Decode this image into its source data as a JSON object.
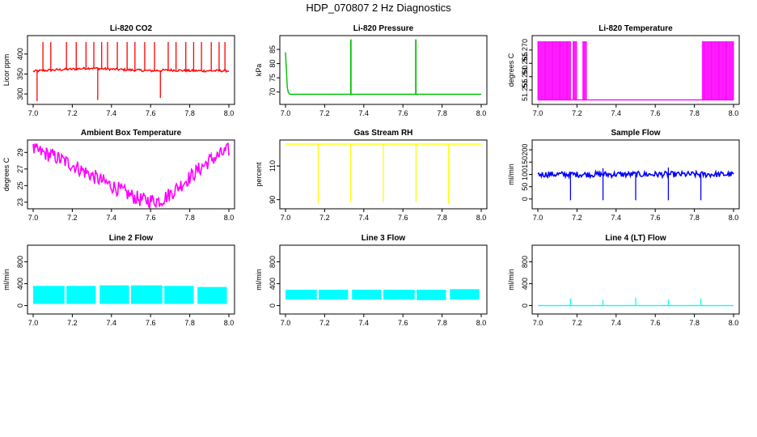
{
  "page": {
    "title": "HDP_070807  2 Hz Diagnostics"
  },
  "colors": {
    "axis": "#000000",
    "background": "#ffffff"
  },
  "chart_data": [
    {
      "id": "co2",
      "type": "line",
      "title": "Li-820 CO2",
      "ylabel": "Licor ppm",
      "color": "#ff0000",
      "xlim": [
        7.0,
        8.0
      ],
      "xticks": [
        "7.0",
        "7.2",
        "7.4",
        "7.6",
        "7.8",
        "8.0"
      ],
      "ylim": [
        280,
        440
      ],
      "yticks": [
        300,
        350,
        400
      ],
      "ytick_labels": [
        "300",
        "350",
        "400"
      ],
      "series": [
        {
          "name": "baseline",
          "x": [
            7.0,
            7.1,
            7.2,
            7.3,
            7.35,
            7.4,
            7.5,
            7.6,
            7.7,
            7.8,
            7.9,
            8.0
          ],
          "y": [
            357,
            360,
            362,
            365,
            363,
            362,
            360,
            358,
            360,
            358,
            358,
            358
          ]
        }
      ],
      "spikes": [
        {
          "x": 7.02,
          "y": 282
        },
        {
          "x": 7.05,
          "y": 430
        },
        {
          "x": 7.09,
          "y": 430
        },
        {
          "x": 7.17,
          "y": 430
        },
        {
          "x": 7.22,
          "y": 430
        },
        {
          "x": 7.27,
          "y": 430
        },
        {
          "x": 7.31,
          "y": 430
        },
        {
          "x": 7.33,
          "y": 285
        },
        {
          "x": 7.35,
          "y": 430
        },
        {
          "x": 7.38,
          "y": 430
        },
        {
          "x": 7.43,
          "y": 430
        },
        {
          "x": 7.48,
          "y": 430
        },
        {
          "x": 7.52,
          "y": 430
        },
        {
          "x": 7.57,
          "y": 430
        },
        {
          "x": 7.62,
          "y": 430
        },
        {
          "x": 7.65,
          "y": 290
        },
        {
          "x": 7.69,
          "y": 430
        },
        {
          "x": 7.73,
          "y": 430
        },
        {
          "x": 7.78,
          "y": 430
        },
        {
          "x": 7.82,
          "y": 430
        },
        {
          "x": 7.86,
          "y": 430
        },
        {
          "x": 7.91,
          "y": 430
        },
        {
          "x": 7.95,
          "y": 430
        },
        {
          "x": 7.98,
          "y": 430
        }
      ]
    },
    {
      "id": "pressure",
      "type": "line",
      "title": "Li-820 Pressure",
      "ylabel": "kPa",
      "color": "#00c000",
      "xlim": [
        7.0,
        8.0
      ],
      "xticks": [
        "7.0",
        "7.2",
        "7.4",
        "7.6",
        "7.8",
        "8.0"
      ],
      "ylim": [
        66.5,
        89
      ],
      "yticks": [
        70,
        75,
        80,
        85
      ],
      "ytick_labels": [
        "70",
        "75",
        "80",
        "85"
      ],
      "series": [
        {
          "name": "pressure",
          "x": [
            7.0,
            7.01,
            7.02,
            8.0
          ],
          "y": [
            84,
            70.5,
            69.2,
            69.2
          ]
        }
      ],
      "spikes": [
        {
          "x": 7.333,
          "y": 88.5
        },
        {
          "x": 7.335,
          "y": 88.5
        },
        {
          "x": 7.665,
          "y": 88.5
        },
        {
          "x": 7.667,
          "y": 88.5
        }
      ]
    },
    {
      "id": "licor_temp",
      "type": "line",
      "title": "Li-820 Temperature",
      "ylabel": "degrees C",
      "color": "#ff00ff",
      "xlim": [
        7.0,
        8.0
      ],
      "xticks": [
        "7.0",
        "7.2",
        "7.4",
        "7.6",
        "7.8",
        "8.0"
      ],
      "ylim": [
        51.2505,
        51.2745
      ],
      "yticks": [
        51.255,
        51.26,
        51.265,
        51.27
      ],
      "ytick_labels": [
        "51.255",
        "51.260",
        "51.265",
        "51.270"
      ],
      "series": [
        {
          "name": "low_state",
          "x": [
            7.0,
            8.0
          ],
          "y": [
            51.2513,
            51.2513
          ]
        }
      ],
      "toggle_ranges": [
        {
          "x_start": 7.0,
          "x_end": 7.17,
          "y_low": 51.2513,
          "y_high": 51.2733
        },
        {
          "x_start": 7.18,
          "x_end": 7.2,
          "y_low": 51.2513,
          "y_high": 51.2733
        },
        {
          "x_start": 7.23,
          "x_end": 7.25,
          "y_low": 51.2513,
          "y_high": 51.2733
        },
        {
          "x_start": 7.84,
          "x_end": 8.0,
          "y_low": 51.2513,
          "y_high": 51.2733
        }
      ]
    },
    {
      "id": "box_temp",
      "type": "line",
      "title": "Ambient Box Temperature",
      "ylabel": "degrees C",
      "color": "#ff00ff",
      "xlim": [
        7.0,
        8.0
      ],
      "xticks": [
        "7.0",
        "7.2",
        "7.4",
        "7.6",
        "7.8",
        "8.0"
      ],
      "ylim": [
        22.5,
        30.2
      ],
      "yticks": [
        23,
        25,
        27,
        29
      ],
      "ytick_labels": [
        "23",
        "25",
        "27",
        "29"
      ],
      "band_width": 0.9,
      "series": [
        {
          "name": "temperature",
          "x": [
            7.0,
            7.1,
            7.2,
            7.3,
            7.4,
            7.5,
            7.55,
            7.6,
            7.65,
            7.7,
            7.8,
            7.9,
            8.0
          ],
          "y": [
            29.3,
            28.6,
            27.5,
            26.2,
            25.0,
            23.8,
            23.3,
            23.2,
            23.2,
            24.0,
            26.0,
            28.0,
            29.3
          ]
        }
      ]
    },
    {
      "id": "rh",
      "type": "line",
      "title": "Gas Stream RH",
      "ylabel": "percent",
      "color": "#ffff00",
      "xlim": [
        7.0,
        8.0
      ],
      "xticks": [
        "7.0",
        "7.2",
        "7.4",
        "7.6",
        "7.8",
        "8.0"
      ],
      "ylim": [
        86,
        124
      ],
      "yticks": [
        90,
        110
      ],
      "ytick_labels": [
        "90",
        "110"
      ],
      "series": [
        {
          "name": "rh",
          "x": [
            7.0,
            8.0
          ],
          "y": [
            123,
            123
          ]
        }
      ],
      "dips": [
        {
          "x": 7.167,
          "y": 87.5
        },
        {
          "x": 7.333,
          "y": 88.5
        },
        {
          "x": 7.5,
          "y": 88.5
        },
        {
          "x": 7.667,
          "y": 88.5
        },
        {
          "x": 7.833,
          "y": 87.5
        }
      ]
    },
    {
      "id": "sample_flow",
      "type": "line",
      "title": "Sample Flow",
      "ylabel": "ml/min",
      "color": "#0000ff",
      "xlim": [
        7.0,
        8.0
      ],
      "xticks": [
        "7.0",
        "7.2",
        "7.4",
        "7.6",
        "7.8",
        "8.0"
      ],
      "ylim": [
        -30,
        230
      ],
      "yticks": [
        0,
        50,
        100,
        150,
        200
      ],
      "ytick_labels": [
        "0",
        "50",
        "100",
        "150",
        "200"
      ],
      "series": [
        {
          "name": "flow",
          "x": [
            7.0,
            8.0
          ],
          "y": [
            100,
            100
          ]
        }
      ],
      "band_width": 12,
      "dips": [
        {
          "x": 7.167,
          "y": -5
        },
        {
          "x": 7.333,
          "y": -5
        },
        {
          "x": 7.5,
          "y": -5
        },
        {
          "x": 7.667,
          "y": -5
        },
        {
          "x": 7.833,
          "y": -5
        }
      ],
      "spikes": [
        {
          "x": 7.333,
          "y": 125
        },
        {
          "x": 7.667,
          "y": 128
        }
      ]
    },
    {
      "id": "line2",
      "type": "area",
      "title": "Line 2 Flow",
      "ylabel": "ml/min",
      "color": "#00ffff",
      "xlim": [
        7.0,
        8.0
      ],
      "xticks": [
        "7.0",
        "7.2",
        "7.4",
        "7.6",
        "7.8",
        "8.0"
      ],
      "ylim": [
        -110,
        1060
      ],
      "yticks": [
        0,
        400,
        800
      ],
      "ytick_labels": [
        "0",
        "400",
        "800"
      ],
      "segments": [
        {
          "x_start": 7.0,
          "x_end": 7.16,
          "y_low": 30,
          "y_high": 360
        },
        {
          "x_start": 7.17,
          "x_end": 7.32,
          "y_low": 30,
          "y_high": 360
        },
        {
          "x_start": 7.34,
          "x_end": 7.49,
          "y_low": 30,
          "y_high": 370
        },
        {
          "x_start": 7.5,
          "x_end": 7.66,
          "y_low": 30,
          "y_high": 370
        },
        {
          "x_start": 7.67,
          "x_end": 7.82,
          "y_low": 30,
          "y_high": 360
        },
        {
          "x_start": 7.84,
          "x_end": 7.99,
          "y_low": 30,
          "y_high": 340
        }
      ]
    },
    {
      "id": "line3",
      "type": "area",
      "title": "Line 3 Flow",
      "ylabel": "ml/min",
      "color": "#00ffff",
      "xlim": [
        7.0,
        8.0
      ],
      "xticks": [
        "7.0",
        "7.2",
        "7.4",
        "7.6",
        "7.8",
        "8.0"
      ],
      "ylim": [
        -110,
        1060
      ],
      "yticks": [
        0,
        400,
        800
      ],
      "ytick_labels": [
        "0",
        "400",
        "800"
      ],
      "segments": [
        {
          "x_start": 7.0,
          "x_end": 7.16,
          "y_low": 110,
          "y_high": 290
        },
        {
          "x_start": 7.17,
          "x_end": 7.32,
          "y_low": 110,
          "y_high": 290
        },
        {
          "x_start": 7.34,
          "x_end": 7.49,
          "y_low": 110,
          "y_high": 290
        },
        {
          "x_start": 7.5,
          "x_end": 7.66,
          "y_low": 110,
          "y_high": 290
        },
        {
          "x_start": 7.67,
          "x_end": 7.82,
          "y_low": 100,
          "y_high": 290
        },
        {
          "x_start": 7.84,
          "x_end": 7.99,
          "y_low": 110,
          "y_high": 300
        }
      ]
    },
    {
      "id": "line4",
      "type": "line",
      "title": "Line 4 (LT) Flow",
      "ylabel": "ml/min",
      "color": "#00ffff",
      "xlim": [
        7.0,
        8.0
      ],
      "xticks": [
        "7.0",
        "7.2",
        "7.4",
        "7.6",
        "7.8",
        "8.0"
      ],
      "ylim": [
        -110,
        1060
      ],
      "yticks": [
        0,
        400,
        800
      ],
      "ytick_labels": [
        "0",
        "400",
        "800"
      ],
      "series": [
        {
          "name": "flow",
          "x": [
            7.0,
            8.0
          ],
          "y": [
            0,
            0
          ]
        }
      ],
      "spikes": [
        {
          "x": 7.167,
          "y": 130
        },
        {
          "x": 7.333,
          "y": 100
        },
        {
          "x": 7.5,
          "y": 140
        },
        {
          "x": 7.667,
          "y": 110
        },
        {
          "x": 7.833,
          "y": 130
        }
      ]
    }
  ]
}
